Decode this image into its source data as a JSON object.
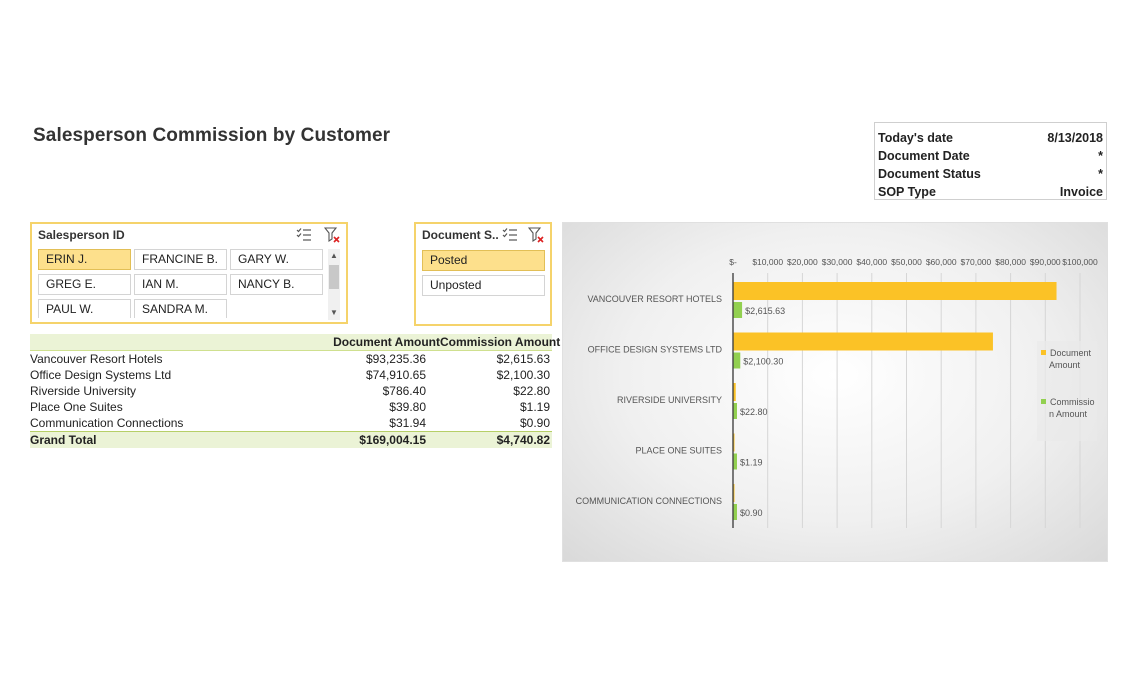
{
  "title": "Salesperson Commission by Customer",
  "info": [
    {
      "label": "Today's date",
      "value": "8/13/2018"
    },
    {
      "label": "Document Date",
      "value": "*"
    },
    {
      "label": "Document Status",
      "value": "*"
    },
    {
      "label": "SOP Type",
      "value": "Invoice"
    }
  ],
  "salesperson_slicer": {
    "title": "Salesperson ID",
    "icons": [
      "multi-select-icon",
      "clear-filter-icon"
    ],
    "items": [
      {
        "label": "ERIN J.",
        "selected": true
      },
      {
        "label": "FRANCINE B.",
        "selected": false
      },
      {
        "label": "GARY W.",
        "selected": false
      },
      {
        "label": "GREG E.",
        "selected": false
      },
      {
        "label": "IAN M.",
        "selected": false
      },
      {
        "label": "NANCY B.",
        "selected": false
      },
      {
        "label": "PAUL W.",
        "selected": false
      },
      {
        "label": "SANDRA M.",
        "selected": false
      }
    ]
  },
  "status_slicer": {
    "title": "Document S...",
    "icons": [
      "multi-select-icon",
      "clear-filter-icon"
    ],
    "items": [
      {
        "label": "Posted",
        "selected": true
      },
      {
        "label": "Unposted",
        "selected": false
      }
    ]
  },
  "pivot": {
    "headers": [
      "",
      "Document Amount",
      "Commission Amount"
    ],
    "rows": [
      [
        "Vancouver Resort Hotels",
        "$93,235.36",
        "$2,615.63"
      ],
      [
        "Office Design Systems Ltd",
        "$74,910.65",
        "$2,100.30"
      ],
      [
        "Riverside University",
        "$786.40",
        "$22.80"
      ],
      [
        "Place One Suites",
        "$39.80",
        "$1.19"
      ],
      [
        "Communication Connections",
        "$31.94",
        "$0.90"
      ]
    ],
    "grand_total": [
      "Grand Total",
      "$169,004.15",
      "$4,740.82"
    ]
  },
  "chart_data": {
    "type": "bar",
    "orientation": "horizontal",
    "categories": [
      "VANCOUVER RESORT HOTELS",
      "OFFICE DESIGN SYSTEMS LTD",
      "RIVERSIDE UNIVERSITY",
      "PLACE ONE SUITES",
      "COMMUNICATION CONNECTIONS"
    ],
    "series": [
      {
        "name": "Document Amount",
        "values": [
          93235.36,
          74910.65,
          786.4,
          39.8,
          31.94
        ],
        "color": "#fbc226"
      },
      {
        "name": "Commission Amount",
        "values": [
          2615.63,
          2100.3,
          22.8,
          1.19,
          0.9
        ],
        "color": "#92d050",
        "data_labels": [
          "$2,615.63",
          "$2,100.30",
          "$22.80",
          "$1.19",
          "$0.90"
        ]
      }
    ],
    "xlim": [
      0,
      100000
    ],
    "x_ticks": [
      0,
      10000,
      20000,
      30000,
      40000,
      50000,
      60000,
      70000,
      80000,
      90000,
      100000
    ],
    "x_tick_labels": [
      "$-",
      "$10,000",
      "$20,000",
      "$30,000",
      "$40,000",
      "$50,000",
      "$60,000",
      "$70,000",
      "$80,000",
      "$90,000",
      "$100,000"
    ],
    "legend_items": [
      "Document Amount",
      "Commission Amount"
    ],
    "legend_labels": [
      [
        "Document",
        "Amount"
      ],
      [
        "Commissio",
        "n Amount"
      ]
    ],
    "legend_position": "right",
    "grid": true
  }
}
